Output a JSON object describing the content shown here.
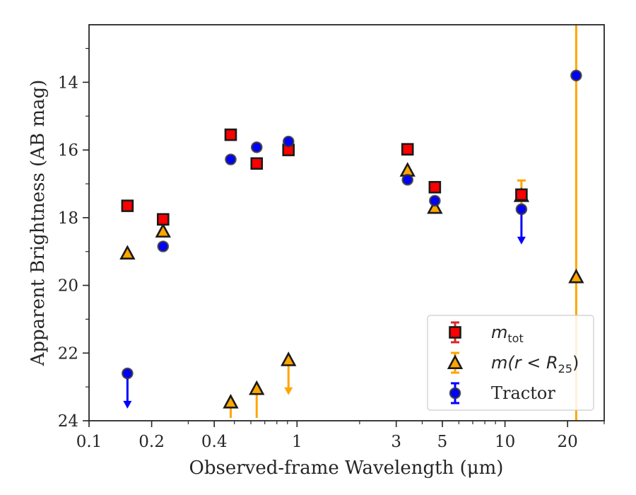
{
  "chart_data": {
    "type": "scatter",
    "xlabel": "Observed-frame Wavelength (μm)",
    "ylabel": "Apparent Brightness (AB mag)",
    "x_scale": "log",
    "xlim": [
      0.1,
      30
    ],
    "ylim": [
      24,
      12.3
    ],
    "y_inverted": true,
    "x_ticks": [
      0.1,
      0.2,
      0.4,
      1,
      3,
      5,
      10,
      20
    ],
    "x_tick_labels": [
      "0.1",
      "0.2",
      "0.4",
      "1",
      "3",
      "5",
      "10",
      "20"
    ],
    "y_ticks": [
      14,
      16,
      18,
      20,
      22,
      24
    ],
    "y_tick_labels": [
      "14",
      "16",
      "18",
      "20",
      "22",
      "24"
    ],
    "grid": false,
    "legend_position": "lower-right",
    "series": [
      {
        "name": "m_tot",
        "legend_math": {
          "base": "m",
          "sub": "tot"
        },
        "marker": "square",
        "color": "#ff0000",
        "edge": "#1a1a1a",
        "errorbar_color": "#d62728",
        "points": [
          {
            "x": 0.153,
            "y": 17.65
          },
          {
            "x": 0.227,
            "y": 18.05
          },
          {
            "x": 0.48,
            "y": 15.55
          },
          {
            "x": 0.64,
            "y": 16.4
          },
          {
            "x": 0.91,
            "y": 16.0
          },
          {
            "x": 3.4,
            "y": 15.98
          },
          {
            "x": 4.6,
            "y": 17.1
          },
          {
            "x": 12.0,
            "y": 17.32
          }
        ]
      },
      {
        "name": "m(r < R25)",
        "legend_math": {
          "pre": "m(r < R",
          "sub": "25",
          "post": ")"
        },
        "marker": "triangle",
        "color": "#ffa500",
        "edge": "#1a1a1a",
        "errorbar_color": "#ffa500",
        "points": [
          {
            "x": 0.153,
            "y": 19.05
          },
          {
            "x": 0.227,
            "y": 18.4
          },
          {
            "x": 0.48,
            "y": 23.45,
            "upper_limit": true,
            "arrow_len": 1.2
          },
          {
            "x": 0.64,
            "y": 23.05,
            "upper_limit": true,
            "arrow_len": 1.0
          },
          {
            "x": 0.91,
            "y": 22.2,
            "upper_limit": true,
            "arrow_len": 1.0
          },
          {
            "x": 3.4,
            "y": 16.6
          },
          {
            "x": 4.6,
            "y": 17.7
          },
          {
            "x": 12.0,
            "y": 17.35,
            "yerr": 0.45
          },
          {
            "x": 22.0,
            "y": 19.75,
            "yerr": 12
          }
        ]
      },
      {
        "name": "Tractor",
        "marker": "circle",
        "color": "#0000ff",
        "edge": "#333333",
        "errorbar_color": "#0000ff",
        "points": [
          {
            "x": 0.153,
            "y": 22.6,
            "upper_limit": true,
            "arrow_len": 1.0
          },
          {
            "x": 0.227,
            "y": 18.85
          },
          {
            "x": 0.48,
            "y": 16.28
          },
          {
            "x": 0.64,
            "y": 15.92
          },
          {
            "x": 0.91,
            "y": 15.75
          },
          {
            "x": 3.4,
            "y": 16.88
          },
          {
            "x": 4.6,
            "y": 17.5
          },
          {
            "x": 12.0,
            "y": 17.75,
            "upper_limit": true,
            "arrow_len": 1.0
          },
          {
            "x": 22.0,
            "y": 13.8
          }
        ]
      }
    ]
  }
}
